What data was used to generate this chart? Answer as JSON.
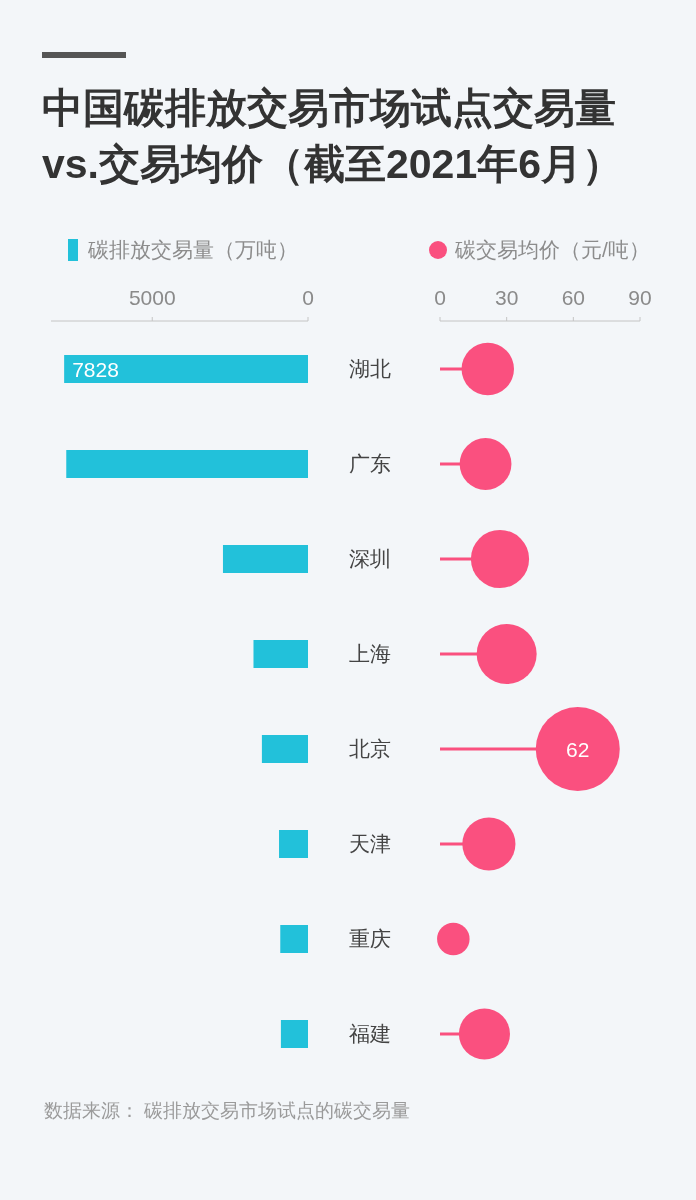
{
  "chart_data": [
    {
      "type": "bar",
      "orientation": "horizontal",
      "title": "中国碳排放交易市场试点交易量vs.交易均价（截至2021年6月）",
      "annotations": [
        "数据来源： 碳排放交易市场试点的碳交易量"
      ],
      "categories": [
        "湖北",
        "广东",
        "深圳",
        "上海",
        "北京",
        "天津",
        "重庆",
        "福建"
      ],
      "series": [
        {
          "name": "碳排放交易量（万吨）",
          "color": "#22c1da",
          "values": [
            7828,
            7760,
            2730,
            1750,
            1480,
            930,
            890,
            870
          ],
          "value_labels": [
            "7828",
            null,
            null,
            null,
            null,
            null,
            null,
            null
          ]
        }
      ],
      "xlim": [
        8250,
        0
      ],
      "xticks": [
        5000,
        0
      ],
      "legend": "top"
    },
    {
      "type": "lollipop",
      "orientation": "horizontal",
      "categories": [
        null,
        null,
        null,
        null,
        null,
        null,
        null,
        null
      ],
      "series": [
        {
          "name": "碳交易均价（元/吨）",
          "color": "#fa507f",
          "values": [
            21.5,
            20.5,
            27,
            30,
            62,
            22,
            6,
            20
          ],
          "sizes": [
            0.39,
            0.38,
            0.48,
            0.51,
            1,
            0.4,
            0.15,
            0.37
          ],
          "value_labels": [
            null,
            null,
            null,
            null,
            "62",
            null,
            null,
            null
          ]
        }
      ],
      "xlim": [
        0,
        90
      ],
      "xticks": [
        0,
        30,
        60,
        90
      ],
      "legend": "top",
      "marker": "circle",
      "tick_labels": "x"
    }
  ]
}
